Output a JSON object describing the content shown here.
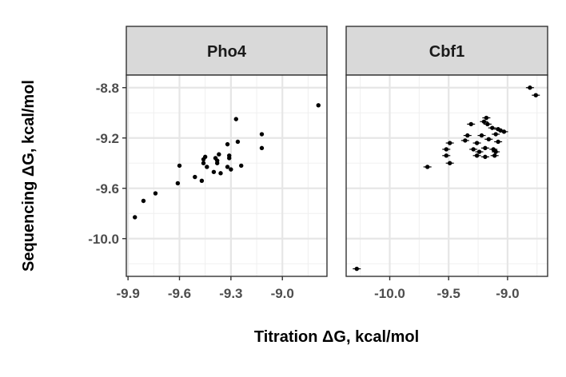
{
  "chart_data": {
    "type": "scatter",
    "xlabel": "Titration ΔG, kcal/mol",
    "ylabel": "Sequencing ΔG, kcal/mol",
    "ylim": [
      -10.3,
      -8.7
    ],
    "y_ticks": [
      -10.0,
      -9.6,
      -9.2,
      -8.8
    ],
    "y_tick_labels": [
      "-10.0",
      "-9.6",
      "-9.2",
      "-8.8"
    ],
    "grid": true,
    "panels": [
      {
        "name": "Pho4",
        "xlim": [
          -9.91,
          -8.74
        ],
        "x_ticks": [
          -9.9,
          -9.6,
          -9.3,
          -9.0
        ],
        "x_tick_labels": [
          "-9.9",
          "-9.6",
          "-9.3",
          "-9.0"
        ],
        "error_bars": false,
        "points": [
          {
            "x": -9.86,
            "y": -9.83
          },
          {
            "x": -9.81,
            "y": -9.7
          },
          {
            "x": -9.74,
            "y": -9.64
          },
          {
            "x": -9.61,
            "y": -9.56
          },
          {
            "x": -9.6,
            "y": -9.42
          },
          {
            "x": -9.51,
            "y": -9.51
          },
          {
            "x": -9.47,
            "y": -9.54
          },
          {
            "x": -9.46,
            "y": -9.37
          },
          {
            "x": -9.46,
            "y": -9.4
          },
          {
            "x": -9.45,
            "y": -9.35
          },
          {
            "x": -9.44,
            "y": -9.43
          },
          {
            "x": -9.4,
            "y": -9.47
          },
          {
            "x": -9.39,
            "y": -9.36
          },
          {
            "x": -9.38,
            "y": -9.38
          },
          {
            "x": -9.38,
            "y": -9.4
          },
          {
            "x": -9.37,
            "y": -9.33
          },
          {
            "x": -9.36,
            "y": -9.48
          },
          {
            "x": -9.32,
            "y": -9.43
          },
          {
            "x": -9.32,
            "y": -9.25
          },
          {
            "x": -9.31,
            "y": -9.34
          },
          {
            "x": -9.31,
            "y": -9.36
          },
          {
            "x": -9.3,
            "y": -9.45
          },
          {
            "x": -9.27,
            "y": -9.05
          },
          {
            "x": -9.26,
            "y": -9.23
          },
          {
            "x": -9.24,
            "y": -9.42
          },
          {
            "x": -9.12,
            "y": -9.17
          },
          {
            "x": -9.12,
            "y": -9.28
          },
          {
            "x": -8.79,
            "y": -8.94
          }
        ]
      },
      {
        "name": "Cbf1",
        "xlim": [
          -10.37,
          -8.66
        ],
        "x_ticks": [
          -10.0,
          -9.5,
          -9.0
        ],
        "x_tick_labels": [
          "-10.0",
          "-9.5",
          "-9.0"
        ],
        "error_bars": true,
        "points": [
          {
            "x": -10.28,
            "y": -10.24
          },
          {
            "x": -9.68,
            "y": -9.43
          },
          {
            "x": -9.52,
            "y": -9.29
          },
          {
            "x": -9.52,
            "y": -9.34
          },
          {
            "x": -9.49,
            "y": -9.24
          },
          {
            "x": -9.49,
            "y": -9.4
          },
          {
            "x": -9.36,
            "y": -9.22
          },
          {
            "x": -9.34,
            "y": -9.18
          },
          {
            "x": -9.31,
            "y": -9.09
          },
          {
            "x": -9.29,
            "y": -9.29
          },
          {
            "x": -9.26,
            "y": -9.24
          },
          {
            "x": -9.26,
            "y": -9.34
          },
          {
            "x": -9.24,
            "y": -9.31
          },
          {
            "x": -9.22,
            "y": -9.18
          },
          {
            "x": -9.2,
            "y": -9.07
          },
          {
            "x": -9.19,
            "y": -9.28
          },
          {
            "x": -9.19,
            "y": -9.35
          },
          {
            "x": -9.18,
            "y": -9.04
          },
          {
            "x": -9.17,
            "y": -9.09
          },
          {
            "x": -9.16,
            "y": -9.21
          },
          {
            "x": -9.13,
            "y": -9.12
          },
          {
            "x": -9.12,
            "y": -9.29
          },
          {
            "x": -9.11,
            "y": -9.34
          },
          {
            "x": -9.1,
            "y": -9.17
          },
          {
            "x": -9.1,
            "y": -9.31
          },
          {
            "x": -9.08,
            "y": -9.13
          },
          {
            "x": -9.08,
            "y": -9.23
          },
          {
            "x": -9.06,
            "y": -9.14
          },
          {
            "x": -9.03,
            "y": -9.15
          },
          {
            "x": -8.81,
            "y": -8.8
          },
          {
            "x": -8.76,
            "y": -8.86
          }
        ]
      }
    ]
  }
}
